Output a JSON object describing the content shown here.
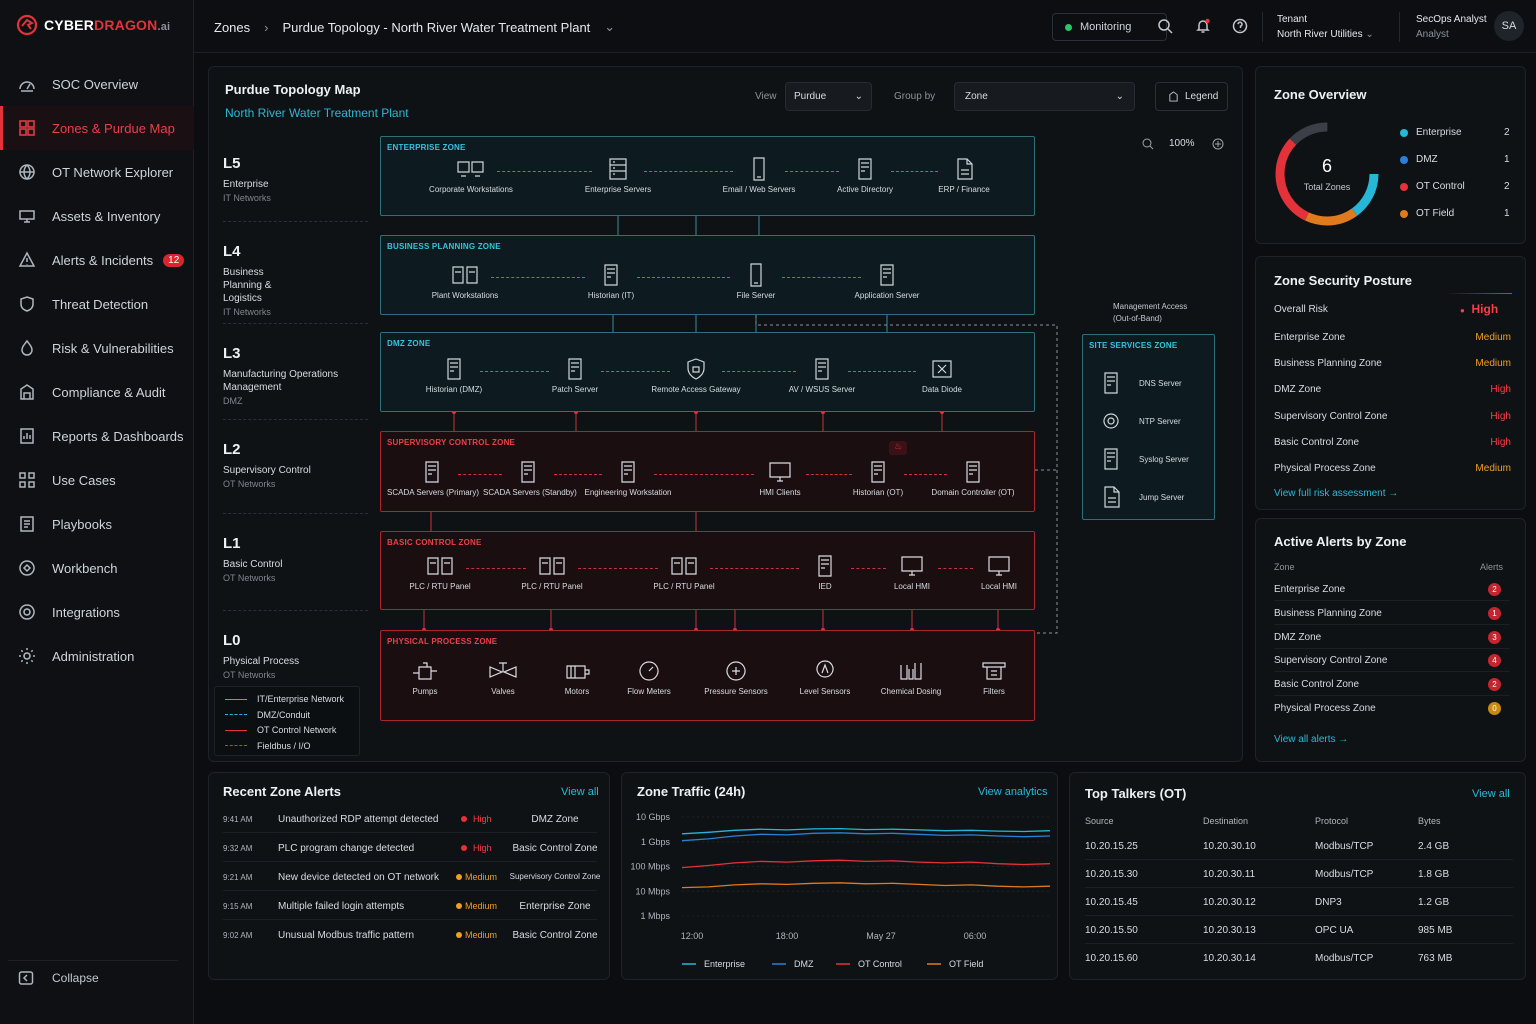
{
  "brand": {
    "name_a": "CYBER",
    "name_b": "DRAGON",
    "suffix": ".ai"
  },
  "sidebar": {
    "items": [
      {
        "label": "SOC Overview",
        "icon": "dashboard-icon"
      },
      {
        "label": "Zones & Purdue Map",
        "icon": "zones-icon"
      },
      {
        "label": "OT Network Explorer",
        "icon": "network-icon"
      },
      {
        "label": "Assets & Inventory",
        "icon": "assets-icon"
      },
      {
        "label": "Alerts & Incidents",
        "icon": "alert-icon",
        "badge": "12"
      },
      {
        "label": "Threat Detection",
        "icon": "shield-icon"
      },
      {
        "label": "Risk & Vulnerabilities",
        "icon": "risk-icon"
      },
      {
        "label": "Compliance & Audit",
        "icon": "compliance-icon"
      },
      {
        "label": "Reports & Dashboards",
        "icon": "reports-icon"
      },
      {
        "label": "Use Cases",
        "icon": "grid-icon"
      },
      {
        "label": "Playbooks",
        "icon": "playbook-icon"
      },
      {
        "label": "Workbench",
        "icon": "workbench-icon"
      },
      {
        "label": "Integrations",
        "icon": "integrations-icon"
      },
      {
        "label": "Administration",
        "icon": "gear-icon"
      }
    ],
    "collapse": "Collapse"
  },
  "topbar": {
    "crumb1": "Zones",
    "crumb2": "Purdue Topology - North River Water Treatment Plant",
    "monitoring": "Monitoring",
    "tenant_label": "Tenant",
    "tenant_name": "North River Utilities",
    "user_name": "SecOps Analyst",
    "user_role": "Analyst",
    "avatar": "SA"
  },
  "topology": {
    "title": "Purdue Topology Map",
    "subtitle": "North River Water Treatment Plant",
    "view_label": "View",
    "view_value": "Purdue",
    "group_label": "Group by",
    "group_value": "Zone",
    "legend_btn": "Legend",
    "zoom": "100%",
    "levels": [
      {
        "code": "L5",
        "name": "Enterprise",
        "type": "IT Networks"
      },
      {
        "code": "L4",
        "name": "Business Planning & Logistics",
        "type": "IT Networks"
      },
      {
        "code": "L3",
        "name": "Manufacturing Operations Management",
        "type": "DMZ"
      },
      {
        "code": "L2",
        "name": "Supervisory Control",
        "type": "OT Networks"
      },
      {
        "code": "L1",
        "name": "Basic Control",
        "type": "OT Networks"
      },
      {
        "code": "L0",
        "name": "Physical Process",
        "type": "OT Networks"
      }
    ],
    "zones": {
      "enterprise": {
        "label": "ENTERPRISE ZONE",
        "nodes": [
          "Corporate Workstations",
          "Enterprise Servers",
          "Email / Web Servers",
          "Active Directory",
          "ERP / Finance"
        ]
      },
      "business": {
        "label": "BUSINESS PLANNING ZONE",
        "nodes": [
          "Plant Workstations",
          "Historian (IT)",
          "File Server",
          "Application Server"
        ]
      },
      "dmz": {
        "label": "DMZ ZONE",
        "nodes": [
          "Historian (DMZ)",
          "Patch Server",
          "Remote Access Gateway",
          "AV / WSUS Server",
          "Data Diode"
        ]
      },
      "supervisory": {
        "label": "SUPERVISORY CONTROL ZONE",
        "nodes": [
          "SCADA Servers (Primary)",
          "SCADA Servers (Standby)",
          "Engineering Workstation",
          "HMI Clients",
          "Historian (OT)",
          "Domain Controller (OT)"
        ]
      },
      "basic": {
        "label": "BASIC CONTROL ZONE",
        "nodes": [
          "PLC / RTU Panel",
          "PLC / RTU Panel",
          "PLC / RTU Panel",
          "IED",
          "Local HMI",
          "Local HMI"
        ]
      },
      "physical": {
        "label": "PHYSICAL PROCESS ZONE",
        "nodes": [
          "Pumps",
          "Valves",
          "Motors",
          "Flow Meters",
          "Pressure Sensors",
          "Level Sensors",
          "Chemical Dosing",
          "Filters"
        ]
      },
      "site": {
        "label": "SITE SERVICES ZONE",
        "nodes": [
          "DNS Server",
          "NTP Server",
          "Syslog Server",
          "Jump Server"
        ]
      }
    },
    "mgmt_line1": "Management Access",
    "mgmt_line2": "(Out-of-Band)",
    "legend": [
      "IT/Enterprise Network",
      "DMZ/Conduit",
      "OT Control Network",
      "Fieldbus / I/O"
    ]
  },
  "zone_overview": {
    "title": "Zone Overview",
    "total": "6",
    "total_label": "Total Zones",
    "items": [
      {
        "name": "Enterprise",
        "count": "2",
        "color": "#26b7d6"
      },
      {
        "name": "DMZ",
        "count": "1",
        "color": "#2a7fd6"
      },
      {
        "name": "OT Control",
        "count": "2",
        "color": "#e3323a"
      },
      {
        "name": "OT Field",
        "count": "1",
        "color": "#e07a1e"
      }
    ]
  },
  "posture": {
    "title": "Zone Security Posture",
    "overall_label": "Overall Risk",
    "overall_value": "High",
    "rows": [
      {
        "zone": "Enterprise Zone",
        "risk": "Medium"
      },
      {
        "zone": "Business Planning Zone",
        "risk": "Medium"
      },
      {
        "zone": "DMZ Zone",
        "risk": "High"
      },
      {
        "zone": "Supervisory Control Zone",
        "risk": "High"
      },
      {
        "zone": "Basic Control Zone",
        "risk": "High"
      },
      {
        "zone": "Physical Process Zone",
        "risk": "Medium"
      }
    ],
    "link": "View full risk assessment →"
  },
  "active_alerts": {
    "title": "Active Alerts by Zone",
    "col1": "Zone",
    "col2": "Alerts",
    "rows": [
      {
        "zone": "Enterprise Zone",
        "n": "2"
      },
      {
        "zone": "Business Planning Zone",
        "n": "1"
      },
      {
        "zone": "DMZ Zone",
        "n": "3"
      },
      {
        "zone": "Supervisory Control Zone",
        "n": "4"
      },
      {
        "zone": "Basic Control Zone",
        "n": "2"
      },
      {
        "zone": "Physical Process Zone",
        "n": "0"
      }
    ],
    "link": "View all alerts →"
  },
  "recent": {
    "title": "Recent Zone Alerts",
    "link": "View all",
    "rows": [
      {
        "time": "9:41 AM",
        "msg": "Unauthorized RDP attempt detected",
        "sev": "High",
        "zone": "DMZ Zone"
      },
      {
        "time": "9:32 AM",
        "msg": "PLC program change detected",
        "sev": "High",
        "zone": "Basic Control Zone"
      },
      {
        "time": "9:21 AM",
        "msg": "New device detected on OT network",
        "sev": "Medium",
        "zone": "Supervisory Control Zone"
      },
      {
        "time": "9:15 AM",
        "msg": "Multiple failed login attempts",
        "sev": "Medium",
        "zone": "Enterprise Zone"
      },
      {
        "time": "9:02 AM",
        "msg": "Unusual Modbus traffic pattern",
        "sev": "Medium",
        "zone": "Basic Control Zone"
      }
    ]
  },
  "traffic": {
    "title": "Zone Traffic (24h)",
    "link": "View analytics"
  },
  "chart_data": {
    "type": "line",
    "title": "Zone Traffic (24h)",
    "y_ticks": [
      "10 Gbps",
      "1 Gbps",
      "100 Mbps",
      "10 Mbps",
      "1 Mbps"
    ],
    "x_ticks": [
      "12:00",
      "18:00",
      "May 27",
      "06:00"
    ],
    "y_scale": "log",
    "series": [
      {
        "name": "Enterprise",
        "color": "#26b7d6",
        "values": [
          2.1,
          2.4,
          2.9,
          3.2,
          3.0,
          3.3,
          3.4,
          3.1,
          3.2,
          3.0,
          2.8,
          2.9,
          2.7,
          2.6,
          2.8
        ]
      },
      {
        "name": "DMZ",
        "color": "#2a7fd6",
        "values": [
          1.1,
          1.3,
          1.7,
          2.0,
          1.9,
          2.2,
          2.3,
          2.1,
          2.2,
          2.0,
          1.8,
          1.9,
          1.7,
          1.6,
          1.7
        ]
      },
      {
        "name": "OT Control",
        "color": "#e3323a",
        "values": [
          90,
          110,
          140,
          160,
          150,
          170,
          180,
          160,
          170,
          150,
          140,
          150,
          130,
          120,
          130
        ]
      },
      {
        "name": "OT Field",
        "color": "#e07a1e",
        "values": [
          14,
          15,
          18,
          20,
          19,
          21,
          22,
          20,
          21,
          19,
          17,
          18,
          16,
          15,
          16
        ]
      }
    ]
  },
  "talkers": {
    "title": "Top Talkers (OT)",
    "link": "View all",
    "cols": [
      "Source",
      "Destination",
      "Protocol",
      "Bytes"
    ],
    "rows": [
      [
        "10.20.15.25",
        "10.20.30.10",
        "Modbus/TCP",
        "2.4 GB"
      ],
      [
        "10.20.15.30",
        "10.20.30.11",
        "Modbus/TCP",
        "1.8 GB"
      ],
      [
        "10.20.15.45",
        "10.20.30.12",
        "DNP3",
        "1.2 GB"
      ],
      [
        "10.20.15.50",
        "10.20.30.13",
        "OPC UA",
        "985 MB"
      ],
      [
        "10.20.15.60",
        "10.20.30.14",
        "Modbus/TCP",
        "763 MB"
      ]
    ]
  }
}
